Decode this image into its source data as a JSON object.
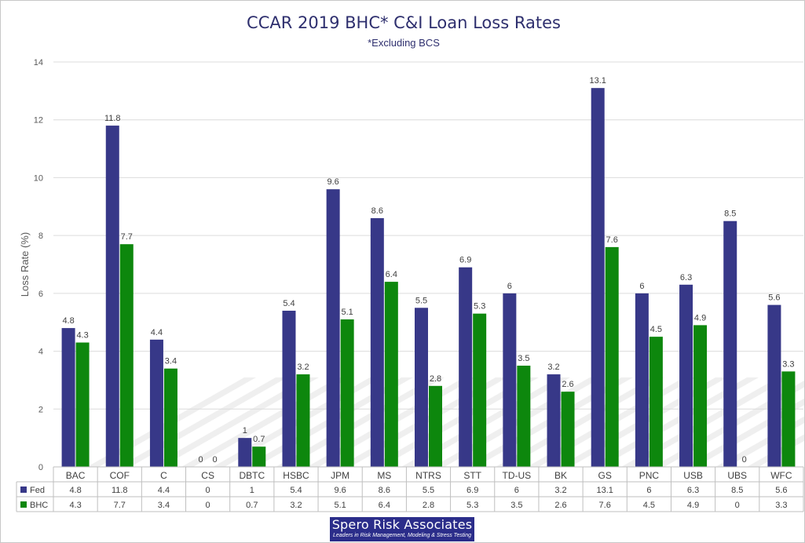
{
  "chart_data": {
    "type": "bar",
    "title": "CCAR 2019 BHC* C&I Loan Loss Rates",
    "subtitle": "*Excluding BCS",
    "ylabel": "Loss Rate (%)",
    "xlabel": "",
    "ylim": [
      0,
      14
    ],
    "yticks": [
      0,
      2,
      4,
      6,
      8,
      10,
      12,
      14
    ],
    "grid": true,
    "legend": "data-table",
    "categories": [
      "BAC",
      "COF",
      "C",
      "CS",
      "DBTC",
      "HSBC",
      "JPM",
      "MS",
      "NTRS",
      "STT",
      "TD-US",
      "BK",
      "GS",
      "PNC",
      "USB",
      "UBS",
      "WFC"
    ],
    "series": [
      {
        "name": "Fed",
        "color": "#373888",
        "values": [
          4.8,
          11.8,
          4.4,
          0,
          1,
          5.4,
          9.6,
          8.6,
          5.5,
          6.9,
          6,
          3.2,
          13.1,
          6,
          6.3,
          8.5,
          5.6
        ],
        "labels": [
          "4.8",
          "11.8",
          "4.4",
          "0",
          "1",
          "5.4",
          "9.6",
          "8.6",
          "5.5",
          "6.9",
          "6",
          "3.2",
          "13.1",
          "6",
          "6.3",
          "8.5",
          "5.6"
        ]
      },
      {
        "name": "BHC",
        "color": "#0d870d",
        "values": [
          4.3,
          7.7,
          3.4,
          0,
          0.7,
          3.2,
          5.1,
          6.4,
          2.8,
          5.3,
          3.5,
          2.6,
          7.6,
          4.5,
          4.9,
          0,
          3.3
        ],
        "labels": [
          "4.3",
          "7.7",
          "3.4",
          "0",
          "0.7",
          "3.2",
          "5.1",
          "6.4",
          "2.8",
          "5.3",
          "3.5",
          "2.6",
          "7.6",
          "4.5",
          "4.9",
          "0",
          "3.3"
        ]
      }
    ]
  },
  "logo": {
    "name": "Spero Risk Associates",
    "tagline": "Leaders in Risk Management, Modeling & Stress Testing"
  }
}
